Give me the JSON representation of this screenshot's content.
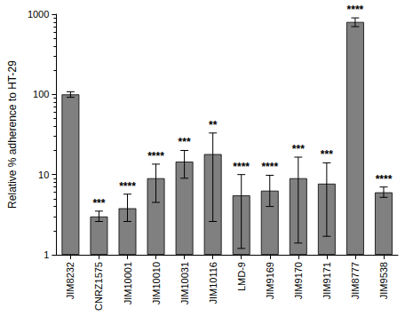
{
  "chart_data": {
    "type": "bar",
    "y_label": "Relative % adherence to HT-29",
    "categories": [
      "JIM8232",
      "CNRZ1575",
      "JIM10001",
      "JIM10010",
      "JIM10031",
      "JIM10116",
      "LMD-9",
      "JIM9169",
      "JIM9170",
      "JIM9171",
      "JIM8777",
      "JIM9538"
    ],
    "values": [
      100,
      3.0,
      3.8,
      9.0,
      14.5,
      18,
      5.5,
      6.3,
      9.0,
      7.7,
      800,
      6.0
    ],
    "error_low": [
      92,
      2.6,
      2.6,
      4.5,
      9.0,
      2.6,
      1.2,
      4.0,
      1.4,
      1.7,
      700,
      5.2
    ],
    "error_high": [
      108,
      3.5,
      5.7,
      13.5,
      20,
      33,
      10,
      9.8,
      16.5,
      14,
      900,
      7.0
    ],
    "significance": [
      null,
      "***",
      "****",
      "****",
      "***",
      "**",
      "****",
      "****",
      "***",
      "***",
      "****",
      "****"
    ],
    "color": "#808080",
    "log": "y",
    "ylim": [
      1,
      1000
    ],
    "yticks": [
      1,
      10,
      100,
      1000
    ],
    "grid": false
  }
}
